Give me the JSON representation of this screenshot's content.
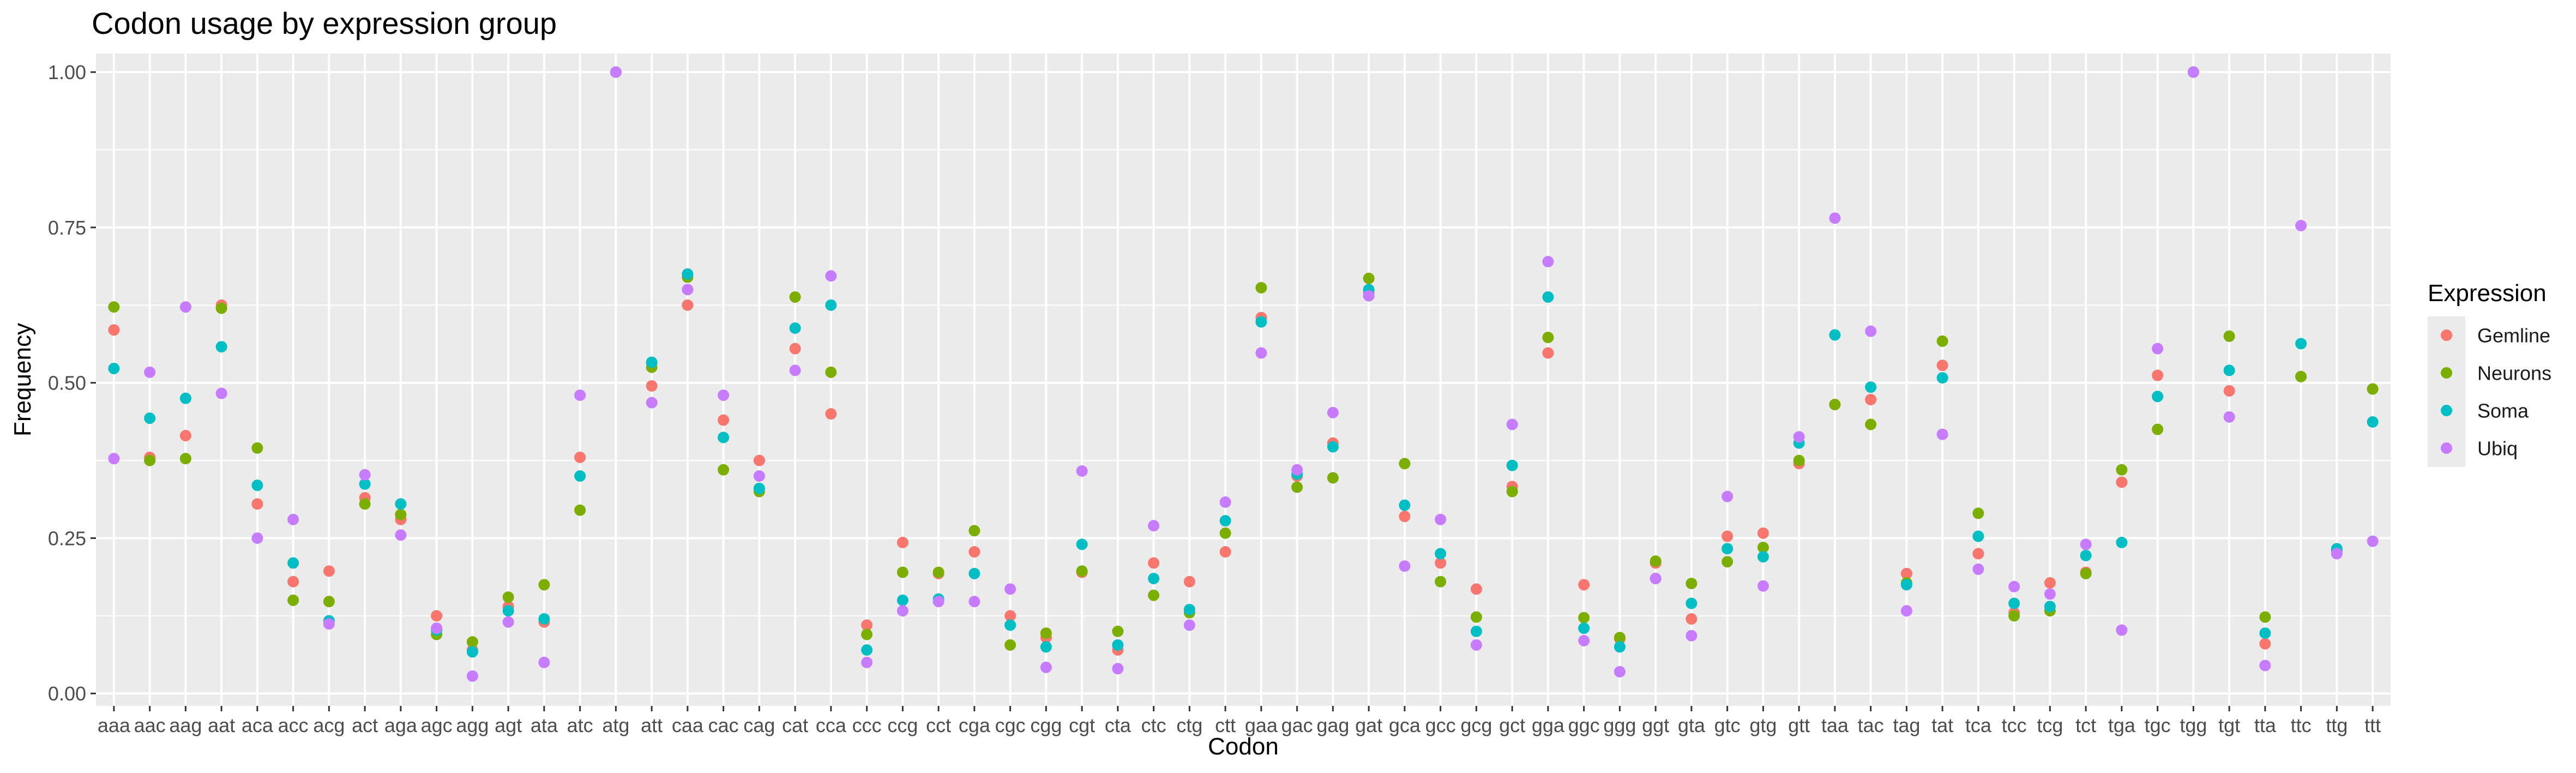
{
  "chart_data": {
    "type": "scatter",
    "title": "Codon usage by expression group",
    "xlabel": "Codon",
    "ylabel": "Frequency",
    "ylim": [
      -0.02,
      1.03
    ],
    "yticks": [
      0.0,
      0.25,
      0.5,
      0.75,
      1.0
    ],
    "ytick_labels": [
      "0.00",
      "0.25",
      "0.50",
      "0.75",
      "1.00"
    ],
    "grid": true,
    "legend": {
      "title": "Expression",
      "position": "right"
    },
    "categories": [
      "aaa",
      "aac",
      "aag",
      "aat",
      "aca",
      "acc",
      "acg",
      "act",
      "aga",
      "agc",
      "agg",
      "agt",
      "ata",
      "atc",
      "atg",
      "att",
      "caa",
      "cac",
      "cag",
      "cat",
      "cca",
      "ccc",
      "ccg",
      "cct",
      "cga",
      "cgc",
      "cgg",
      "cgt",
      "cta",
      "ctc",
      "ctg",
      "ctt",
      "gaa",
      "gac",
      "gag",
      "gat",
      "gca",
      "gcc",
      "gcg",
      "gct",
      "gga",
      "ggc",
      "ggg",
      "ggt",
      "gta",
      "gtc",
      "gtg",
      "gtt",
      "taa",
      "tac",
      "tag",
      "tat",
      "tca",
      "tcc",
      "tcg",
      "tct",
      "tga",
      "tgc",
      "tgg",
      "tgt",
      "tta",
      "ttc",
      "ttg",
      "ttt"
    ],
    "series": [
      {
        "name": "Gemline",
        "color": "#F8766D",
        "values": [
          0.585,
          0.38,
          0.415,
          0.625,
          0.305,
          0.18,
          0.197,
          0.315,
          0.28,
          0.125,
          0.07,
          0.14,
          0.115,
          0.38,
          1.0,
          0.495,
          0.625,
          0.44,
          0.375,
          0.555,
          0.45,
          0.11,
          0.243,
          0.193,
          0.228,
          0.125,
          0.09,
          0.195,
          0.07,
          0.21,
          0.18,
          0.228,
          0.605,
          0.35,
          0.403,
          0.645,
          0.285,
          0.21,
          0.168,
          0.333,
          0.548,
          0.175,
          0.088,
          0.21,
          0.12,
          0.253,
          0.258,
          0.37,
          0.465,
          0.473,
          0.193,
          0.528,
          0.225,
          0.13,
          0.178,
          0.195,
          0.34,
          0.512,
          1.0,
          0.487,
          0.08,
          0.51,
          0.228,
          0.49
        ]
      },
      {
        "name": "Neurons",
        "color": "#7CAE00",
        "values": [
          0.622,
          0.375,
          0.378,
          0.62,
          0.395,
          0.15,
          0.148,
          0.305,
          0.288,
          0.095,
          0.083,
          0.155,
          0.175,
          0.295,
          1.0,
          0.525,
          0.67,
          0.36,
          0.325,
          0.638,
          0.517,
          0.095,
          0.195,
          0.195,
          0.262,
          0.078,
          0.097,
          0.197,
          0.1,
          0.158,
          0.13,
          0.258,
          0.653,
          0.332,
          0.347,
          0.668,
          0.37,
          0.18,
          0.123,
          0.325,
          0.573,
          0.122,
          0.09,
          0.213,
          0.177,
          0.212,
          0.235,
          0.375,
          0.465,
          0.433,
          0.178,
          0.567,
          0.29,
          0.125,
          0.133,
          0.193,
          0.36,
          0.425,
          1.0,
          0.575,
          0.123,
          0.51,
          0.23,
          0.49
        ]
      },
      {
        "name": "Soma",
        "color": "#00BFC4",
        "values": [
          0.523,
          0.443,
          0.475,
          0.558,
          0.335,
          0.21,
          0.117,
          0.337,
          0.305,
          0.102,
          0.067,
          0.133,
          0.12,
          0.35,
          1.0,
          0.533,
          0.675,
          0.412,
          0.33,
          0.588,
          0.625,
          0.07,
          0.15,
          0.152,
          0.193,
          0.11,
          0.075,
          0.24,
          0.078,
          0.185,
          0.135,
          0.278,
          0.598,
          0.353,
          0.397,
          0.65,
          0.303,
          0.225,
          0.1,
          0.367,
          0.638,
          0.105,
          0.075,
          0.185,
          0.145,
          0.233,
          0.22,
          0.403,
          0.577,
          0.493,
          0.175,
          0.508,
          0.253,
          0.145,
          0.14,
          0.222,
          0.243,
          0.478,
          1.0,
          0.52,
          0.097,
          0.563,
          0.233,
          0.437
        ]
      },
      {
        "name": "Ubiq",
        "color": "#C77CFF",
        "values": [
          0.378,
          0.517,
          0.622,
          0.483,
          0.25,
          0.28,
          0.112,
          0.352,
          0.255,
          0.105,
          0.028,
          0.115,
          0.05,
          0.48,
          1.0,
          0.468,
          0.65,
          0.48,
          0.35,
          0.52,
          0.672,
          0.05,
          0.133,
          0.148,
          0.148,
          0.168,
          0.042,
          0.358,
          0.04,
          0.27,
          0.11,
          0.308,
          0.548,
          0.36,
          0.452,
          0.64,
          0.205,
          0.28,
          0.078,
          0.433,
          0.695,
          0.085,
          0.035,
          0.185,
          0.093,
          0.317,
          0.173,
          0.413,
          0.765,
          0.583,
          0.133,
          0.417,
          0.2,
          0.172,
          0.16,
          0.24,
          0.102,
          0.555,
          1.0,
          0.445,
          0.045,
          0.753,
          0.225,
          0.245
        ]
      }
    ]
  }
}
